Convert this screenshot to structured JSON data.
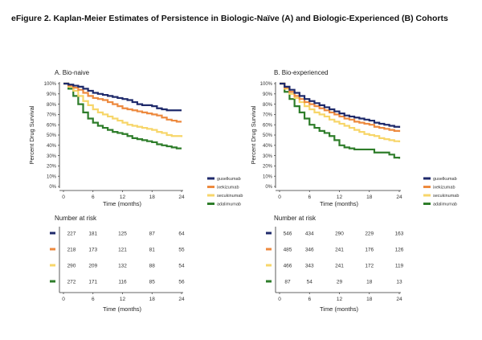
{
  "figure_title": "eFigure 2. Kaplan-Meier Estimates of Persistence in Biologic-Naïve (A) and Biologic-Experienced (B) Cohorts",
  "colors": {
    "guselkumab": "#1f2a6b",
    "ixekizumab": "#ed8a3f",
    "secukinumab": "#f7d66a",
    "adalimumab": "#2e7d2a"
  },
  "chart_data": [
    {
      "type": "line",
      "panel": "A. Bio-naive",
      "title": "A. Bio-naive",
      "xlabel": "Time (months)",
      "ylabel": "Percent Drug Survival",
      "xlim": [
        0,
        24
      ],
      "ylim": [
        0,
        100
      ],
      "xticks": [
        0,
        6,
        12,
        18,
        24
      ],
      "yticks": [
        0,
        10,
        20,
        30,
        40,
        50,
        60,
        70,
        80,
        90,
        100
      ],
      "ytick_labels": [
        "0%",
        "10%",
        "20%",
        "30%",
        "40%",
        "50%",
        "60%",
        "70%",
        "80%",
        "90%",
        "100%"
      ],
      "legend_position": "bottom-right",
      "series": [
        {
          "name": "guselkumab",
          "color_key": "guselkumab",
          "x": [
            0,
            1,
            2,
            3,
            4,
            5,
            6,
            7,
            8,
            9,
            10,
            11,
            12,
            13,
            14,
            15,
            16,
            17,
            18,
            19,
            20,
            21,
            22,
            23,
            24
          ],
          "y": [
            100,
            99,
            98,
            97,
            95,
            93,
            91,
            90,
            89,
            88,
            87,
            86,
            85,
            84,
            82,
            80,
            79,
            79,
            78,
            76,
            75,
            74,
            74,
            74,
            74
          ]
        },
        {
          "name": "ixekizumab",
          "color_key": "ixekizumab",
          "x": [
            0,
            1,
            2,
            3,
            4,
            5,
            6,
            7,
            8,
            9,
            10,
            11,
            12,
            13,
            14,
            15,
            16,
            17,
            18,
            19,
            20,
            21,
            22,
            23,
            24
          ],
          "y": [
            100,
            98,
            96,
            94,
            91,
            88,
            86,
            85,
            84,
            82,
            80,
            78,
            76,
            75,
            74,
            73,
            72,
            71,
            70,
            69,
            67,
            65,
            64,
            63,
            63
          ]
        },
        {
          "name": "secukinumab",
          "color_key": "secukinumab",
          "x": [
            0,
            1,
            2,
            3,
            4,
            5,
            6,
            7,
            8,
            9,
            10,
            11,
            12,
            13,
            14,
            15,
            16,
            17,
            18,
            19,
            20,
            21,
            22,
            23,
            24
          ],
          "y": [
            100,
            97,
            93,
            88,
            83,
            79,
            75,
            72,
            70,
            68,
            66,
            64,
            62,
            60,
            59,
            58,
            57,
            56,
            55,
            53,
            52,
            50,
            49,
            49,
            48
          ]
        },
        {
          "name": "adalimumab",
          "color_key": "adalimumab",
          "x": [
            0,
            1,
            2,
            3,
            4,
            5,
            6,
            7,
            8,
            9,
            10,
            11,
            12,
            13,
            14,
            15,
            16,
            17,
            18,
            19,
            20,
            21,
            22,
            23,
            24
          ],
          "y": [
            100,
            95,
            88,
            80,
            72,
            66,
            62,
            59,
            57,
            55,
            53,
            52,
            51,
            49,
            47,
            46,
            45,
            44,
            43,
            41,
            40,
            39,
            38,
            37,
            37
          ]
        }
      ],
      "risk_table": {
        "title": "Number at risk",
        "xlabel": "Time (months)",
        "times": [
          0,
          6,
          12,
          18,
          24
        ],
        "rows": [
          {
            "color_key": "guselkumab",
            "values": [
              227,
              181,
              125,
              87,
              64
            ]
          },
          {
            "color_key": "ixekizumab",
            "values": [
              218,
              173,
              121,
              81,
              55
            ]
          },
          {
            "color_key": "secukinumab",
            "values": [
              290,
              209,
              132,
              88,
              54
            ]
          },
          {
            "color_key": "adalimumab",
            "values": [
              272,
              171,
              116,
              85,
              56
            ]
          }
        ]
      }
    },
    {
      "type": "line",
      "panel": "B. Bio-experienced",
      "title": "B. Bio-experienced",
      "xlabel": "Time (months)",
      "ylabel": "Percent Drug Survival",
      "xlim": [
        0,
        24
      ],
      "ylim": [
        0,
        100
      ],
      "xticks": [
        0,
        6,
        12,
        18,
        24
      ],
      "yticks": [
        0,
        10,
        20,
        30,
        40,
        50,
        60,
        70,
        80,
        90,
        100
      ],
      "ytick_labels": [
        "0%",
        "10%",
        "20%",
        "30%",
        "40%",
        "50%",
        "60%",
        "70%",
        "80%",
        "90%",
        "100%"
      ],
      "legend_position": "bottom-right",
      "series": [
        {
          "name": "guselkumab",
          "color_key": "guselkumab",
          "x": [
            0,
            1,
            2,
            3,
            4,
            5,
            6,
            7,
            8,
            9,
            10,
            11,
            12,
            13,
            14,
            15,
            16,
            17,
            18,
            19,
            20,
            21,
            22,
            23,
            24
          ],
          "y": [
            100,
            97,
            94,
            91,
            88,
            85,
            83,
            81,
            79,
            77,
            75,
            73,
            71,
            69,
            68,
            67,
            66,
            65,
            64,
            62,
            61,
            60,
            59,
            58,
            57
          ]
        },
        {
          "name": "ixekizumab",
          "color_key": "ixekizumab",
          "x": [
            0,
            1,
            2,
            3,
            4,
            5,
            6,
            7,
            8,
            9,
            10,
            11,
            12,
            13,
            14,
            15,
            16,
            17,
            18,
            19,
            20,
            21,
            22,
            23,
            24
          ],
          "y": [
            100,
            96,
            92,
            88,
            85,
            82,
            80,
            78,
            76,
            74,
            72,
            70,
            68,
            66,
            65,
            63,
            62,
            61,
            60,
            58,
            57,
            56,
            55,
            54,
            53
          ]
        },
        {
          "name": "secukinumab",
          "color_key": "secukinumab",
          "x": [
            0,
            1,
            2,
            3,
            4,
            5,
            6,
            7,
            8,
            9,
            10,
            11,
            12,
            13,
            14,
            15,
            16,
            17,
            18,
            19,
            20,
            21,
            22,
            23,
            24
          ],
          "y": [
            100,
            95,
            90,
            86,
            82,
            78,
            75,
            72,
            70,
            68,
            65,
            63,
            61,
            59,
            57,
            55,
            53,
            51,
            50,
            49,
            47,
            46,
            45,
            44,
            43
          ]
        },
        {
          "name": "adalimumab",
          "color_key": "adalimumab",
          "x": [
            0,
            1,
            2,
            3,
            4,
            5,
            6,
            7,
            8,
            9,
            10,
            11,
            12,
            13,
            14,
            15,
            16,
            17,
            18,
            19,
            20,
            21,
            22,
            23,
            24
          ],
          "y": [
            100,
            92,
            85,
            78,
            72,
            66,
            60,
            57,
            54,
            52,
            49,
            45,
            40,
            38,
            37,
            36,
            36,
            36,
            36,
            33,
            33,
            33,
            31,
            28,
            27
          ]
        }
      ],
      "risk_table": {
        "title": "Number at risk",
        "xlabel": "Time (months)",
        "times": [
          0,
          6,
          12,
          18,
          24
        ],
        "rows": [
          {
            "color_key": "guselkumab",
            "values": [
              546,
              434,
              290,
              229,
              163
            ]
          },
          {
            "color_key": "ixekizumab",
            "values": [
              485,
              346,
              241,
              176,
              126
            ]
          },
          {
            "color_key": "secukinumab",
            "values": [
              466,
              343,
              241,
              172,
              119
            ]
          },
          {
            "color_key": "adalimumab",
            "values": [
              87,
              54,
              29,
              18,
              13
            ]
          }
        ]
      }
    }
  ]
}
